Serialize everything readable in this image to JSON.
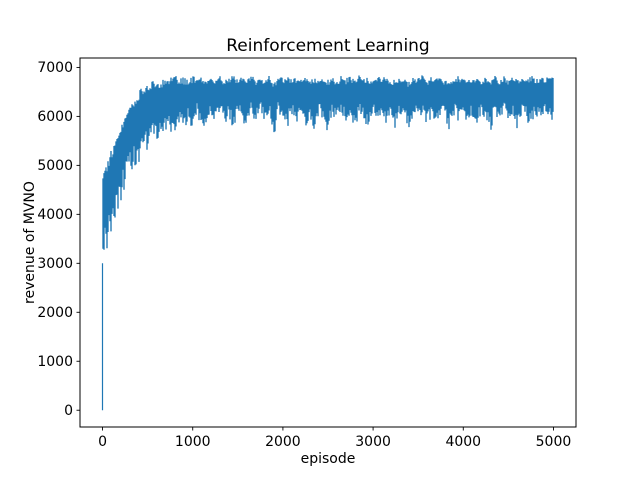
{
  "chart_data": {
    "type": "line",
    "title": "Reinforcement Learning",
    "xlabel": "episode",
    "ylabel": "revenue of MVNO",
    "xlim": [
      -250,
      5250
    ],
    "ylim": [
      -342.5,
      7192.5
    ],
    "xticks": [
      0,
      1000,
      2000,
      3000,
      4000,
      5000
    ],
    "yticks": [
      0,
      1000,
      2000,
      3000,
      4000,
      5000,
      6000,
      7000
    ],
    "grid": false,
    "legend": "none",
    "line_color": "#1f77b4",
    "background_color": "#ffffff",
    "text_color": "#000000",
    "spine_color": "#000000",
    "noise_seed": 20,
    "series": [
      {
        "name": "revenue of MVNO per training episode",
        "x_start": 0,
        "x_step": 50,
        "x_end": 5000,
        "start_dip": {
          "episode": 0,
          "min": 0,
          "max": 3000
        },
        "envelope_max": [
          4920,
          5110,
          5320,
          5610,
          5860,
          6020,
          6210,
          6370,
          6500,
          6620,
          6670,
          6710,
          6760,
          6700,
          6810,
          6780,
          6850,
          6760,
          6800,
          6730,
          6820,
          6780,
          6840,
          6750,
          6810,
          6770,
          6850,
          6720,
          6800,
          6830,
          6740,
          6810,
          6770,
          6850,
          6730,
          6800,
          6760,
          6830,
          6700,
          6820,
          6780,
          6840,
          6740,
          6800,
          6770,
          6850,
          6710,
          6810,
          6760,
          6830,
          6750,
          6820,
          6700,
          6840,
          6780,
          6810,
          6730,
          6850,
          6760,
          6800,
          6740,
          6820,
          6770,
          6840,
          6720,
          6810,
          6750,
          6830,
          6700,
          6800,
          6770,
          6850,
          6730,
          6810,
          6760,
          6840,
          6710,
          6800,
          6780,
          6830,
          6740,
          6810,
          6760,
          6850,
          6720,
          6800,
          6770,
          6830,
          6700,
          6820,
          6750,
          6840,
          6730,
          6800,
          6780,
          6850,
          6740,
          6810,
          6760,
          6820,
          6780
        ],
        "envelope_min": [
          2950,
          3310,
          3700,
          4010,
          4260,
          4580,
          4840,
          4990,
          5060,
          5190,
          5340,
          5450,
          5540,
          5610,
          5650,
          5700,
          5620,
          5890,
          5660,
          5980,
          5700,
          6050,
          5730,
          5680,
          6070,
          5900,
          6130,
          5820,
          6010,
          5740,
          6090,
          5950,
          5700,
          6060,
          5880,
          6120,
          5800,
          6030,
          5560,
          6100,
          5920,
          5770,
          6050,
          5860,
          6140,
          5790,
          6000,
          5720,
          6080,
          5930,
          5660,
          6040,
          5890,
          6110,
          5810,
          6020,
          5750,
          6090,
          5960,
          5690,
          6060,
          5900,
          6130,
          5830,
          6000,
          5730,
          6070,
          5940,
          5640,
          6050,
          5870,
          6120,
          5800,
          6010,
          5760,
          6080,
          5950,
          5700,
          6040,
          5890,
          6110,
          5820,
          6030,
          5780,
          6090,
          5930,
          5670,
          6060,
          5910,
          6130,
          5850,
          6000,
          5740,
          6080,
          5960,
          5710,
          6050,
          5900,
          6120,
          5830,
          5980
        ]
      }
    ]
  }
}
